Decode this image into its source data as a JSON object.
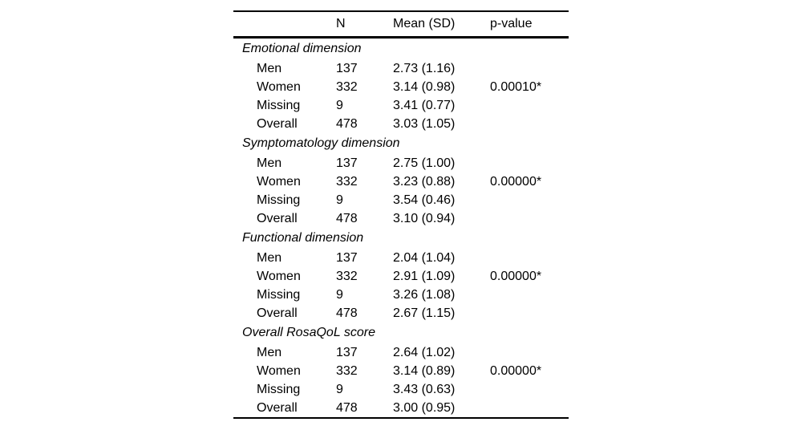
{
  "page": {
    "background": "#ffffff",
    "text_color": "#000000"
  },
  "table": {
    "header": {
      "label": "",
      "n": "N",
      "mean_sd": "Mean (SD)",
      "p_value": "p-value"
    },
    "sections": [
      {
        "title": "Emotional dimension",
        "rows": [
          {
            "label": "Men",
            "n": "137",
            "mean_sd": "2.73 (1.16)",
            "p_value": ""
          },
          {
            "label": "Women",
            "n": "332",
            "mean_sd": "3.14 (0.98)",
            "p_value": "0.00010*"
          },
          {
            "label": "Missing",
            "n": "9",
            "mean_sd": "3.41 (0.77)",
            "p_value": ""
          },
          {
            "label": "Overall",
            "n": "478",
            "mean_sd": "3.03 (1.05)",
            "p_value": ""
          }
        ]
      },
      {
        "title": "Symptomatology dimension",
        "rows": [
          {
            "label": "Men",
            "n": "137",
            "mean_sd": "2.75 (1.00)",
            "p_value": ""
          },
          {
            "label": "Women",
            "n": "332",
            "mean_sd": "3.23 (0.88)",
            "p_value": "0.00000*"
          },
          {
            "label": "Missing",
            "n": "9",
            "mean_sd": "3.54 (0.46)",
            "p_value": ""
          },
          {
            "label": "Overall",
            "n": "478",
            "mean_sd": "3.10 (0.94)",
            "p_value": ""
          }
        ]
      },
      {
        "title": "Functional dimension",
        "rows": [
          {
            "label": "Men",
            "n": "137",
            "mean_sd": "2.04 (1.04)",
            "p_value": ""
          },
          {
            "label": "Women",
            "n": "332",
            "mean_sd": "2.91 (1.09)",
            "p_value": "0.00000*"
          },
          {
            "label": "Missing",
            "n": "9",
            "mean_sd": "3.26 (1.08)",
            "p_value": ""
          },
          {
            "label": "Overall",
            "n": "478",
            "mean_sd": "2.67 (1.15)",
            "p_value": ""
          }
        ]
      },
      {
        "title": "Overall RosaQoL score",
        "rows": [
          {
            "label": "Men",
            "n": "137",
            "mean_sd": "2.64 (1.02)",
            "p_value": ""
          },
          {
            "label": "Women",
            "n": "332",
            "mean_sd": "3.14 (0.89)",
            "p_value": "0.00000*"
          },
          {
            "label": "Missing",
            "n": "9",
            "mean_sd": "3.43 (0.63)",
            "p_value": ""
          },
          {
            "label": "Overall",
            "n": "478",
            "mean_sd": "3.00 (0.95)",
            "p_value": ""
          }
        ]
      }
    ]
  }
}
